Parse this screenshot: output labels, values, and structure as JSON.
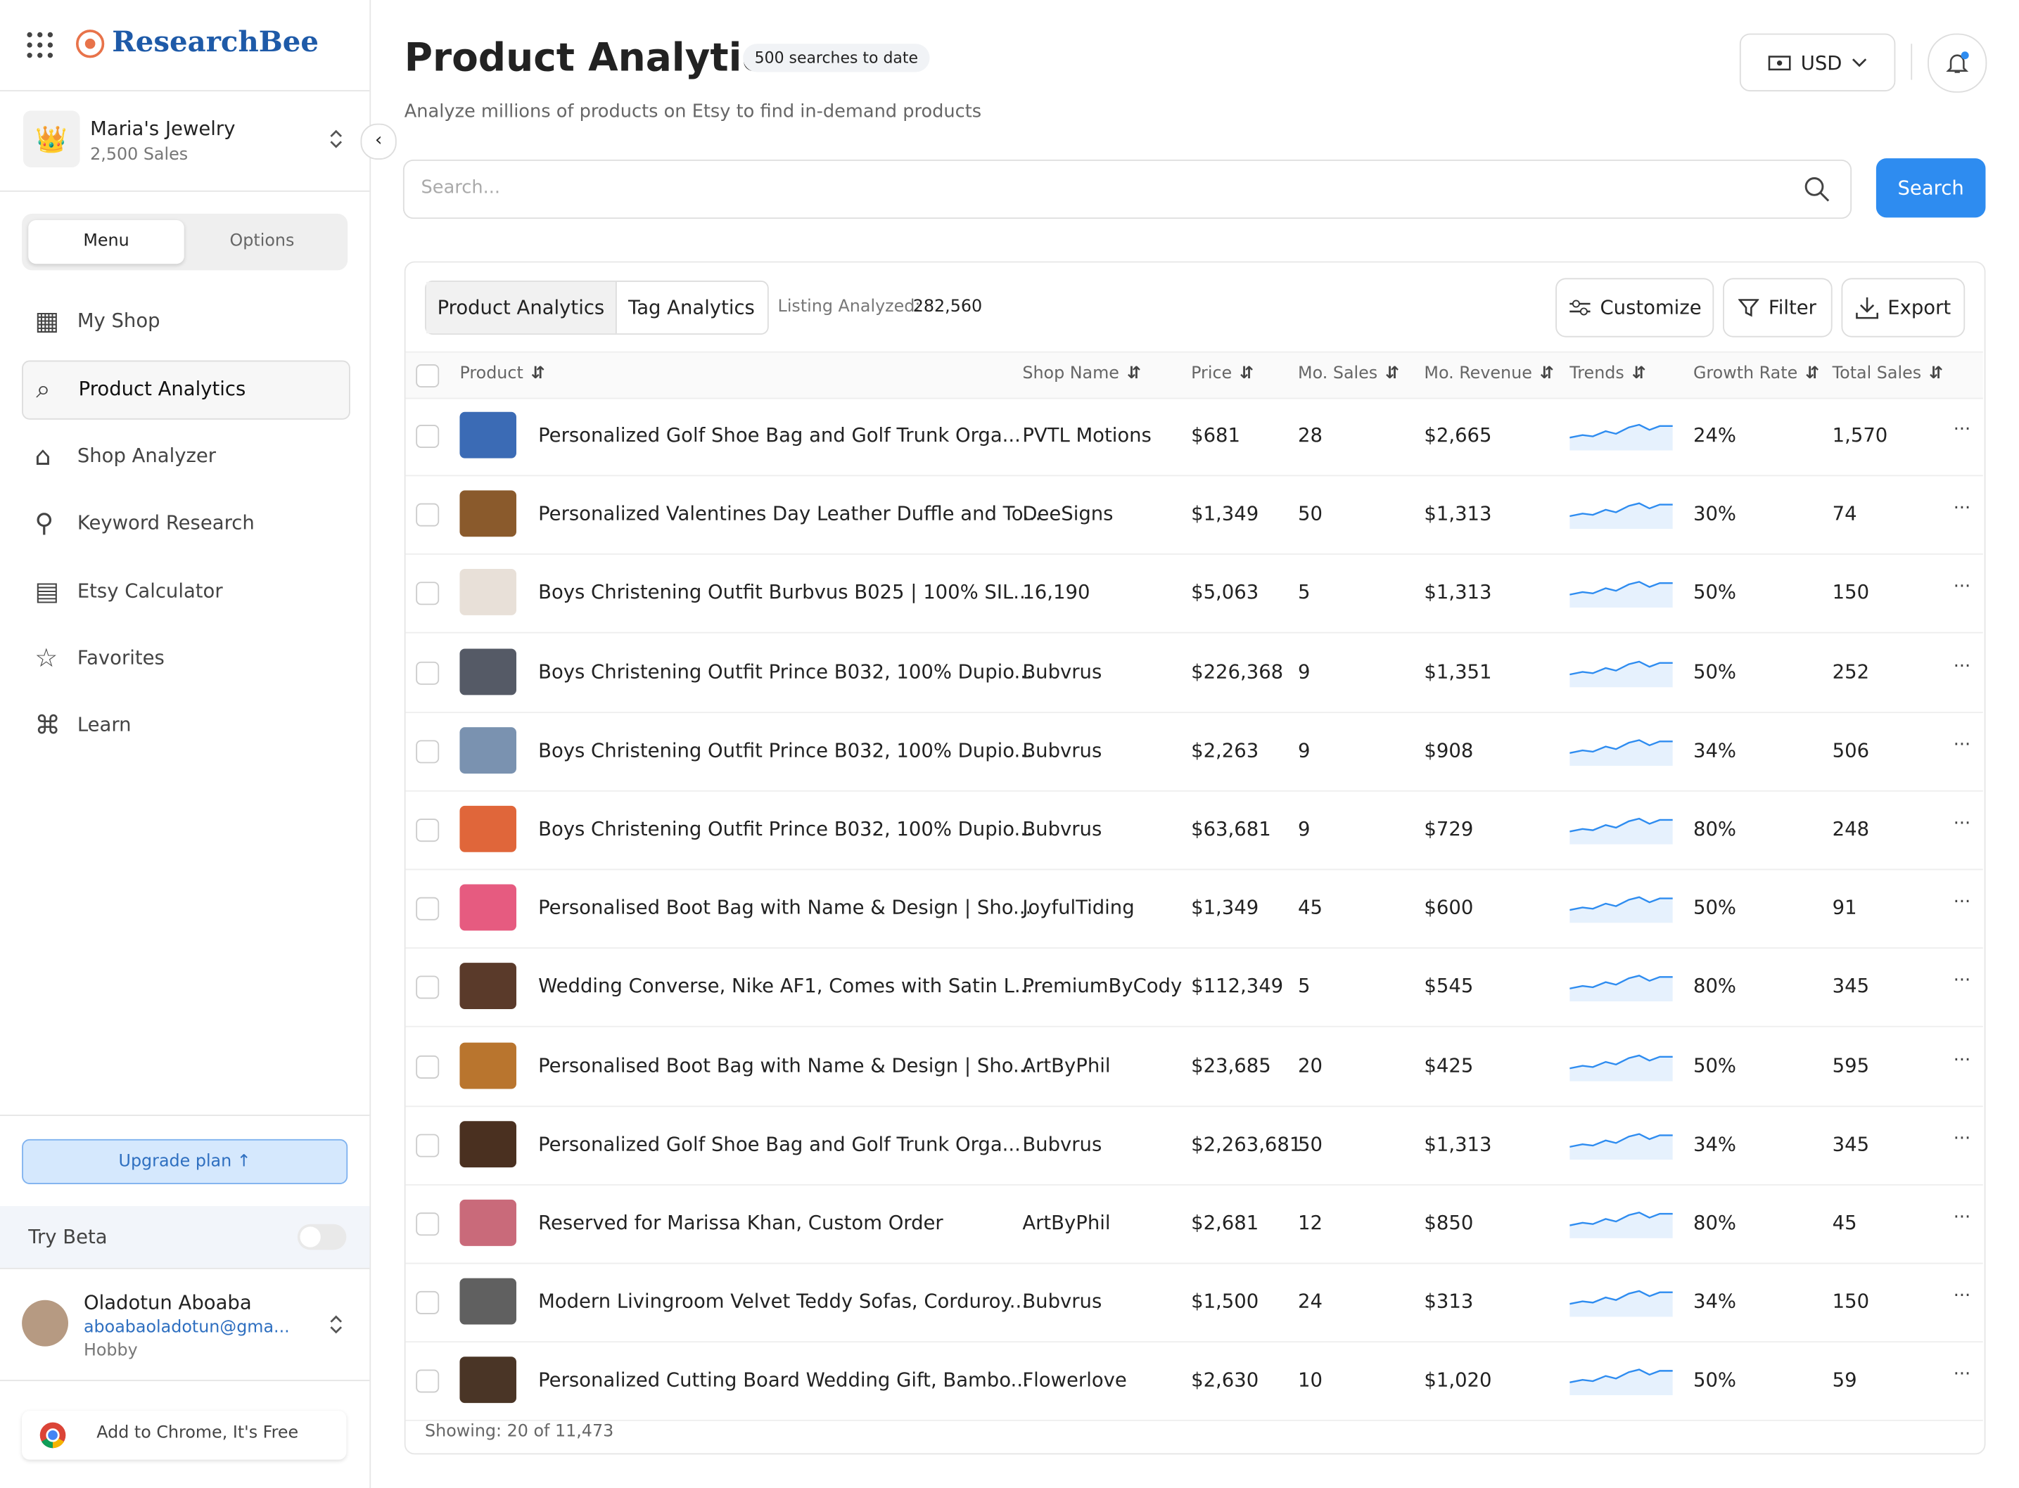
{
  "brand": "ResearchBee",
  "shop": {
    "name": "Maria's Jewelry",
    "sales": "2,500 Sales"
  },
  "sidebar_tabs": [
    "Menu",
    "Options"
  ],
  "nav": [
    "My Shop",
    "Product Analytics",
    "Shop Analyzer",
    "Keyword Research",
    "Etsy Calculator",
    "Favorites",
    "Learn"
  ],
  "upgrade": "Upgrade plan",
  "beta": "Try Beta",
  "user": {
    "name": "Oladotun Aboaba",
    "email": "aboabaoladotun@gma...",
    "plan": "Hobby"
  },
  "chrome": "Add to Chrome, It's Free",
  "header": {
    "title": "Product Analytics",
    "badge": "500 searches to date",
    "subtitle": "Analyze millions of products on Etsy to find in-demand products",
    "currency": "USD",
    "search_placeholder": "Search...",
    "search_button": "Search"
  },
  "toolbar": {
    "tabs": [
      "Product Analytics",
      "Tag Analytics"
    ],
    "listing_label": "Listing Analyzed:",
    "listing_value": "282,560",
    "buttons": [
      "Customize",
      "Filter",
      "Export"
    ]
  },
  "table": {
    "columns": [
      "Product",
      "Shop Name",
      "Price",
      "Mo. Sales",
      "Mo. Revenue",
      "Trends",
      "Growth Rate",
      "Total Sales"
    ],
    "rows": [
      [
        "Personalized Golf Shoe Bag and Golf Trunk Orga...",
        "PVTL Motions",
        "$681",
        "28",
        "$2,665",
        "24%",
        "1,570"
      ],
      [
        "Personalized Valentines Day Leather Duffle and To...",
        "DeeSigns",
        "$1,349",
        "50",
        "$1,313",
        "30%",
        "74"
      ],
      [
        "Boys Christening Outfit Burbvus B025 | 100% SIL...",
        "16,190",
        "$5,063",
        "5",
        "$1,313",
        "50%",
        "150"
      ],
      [
        "Boys Christening Outfit Prince B032, 100% Dupio...",
        "Bubvrus",
        "$226,368",
        "9",
        "$1,351",
        "50%",
        "252"
      ],
      [
        "Boys Christening Outfit Prince B032, 100% Dupio...",
        "Bubvrus",
        "$2,263",
        "9",
        "$908",
        "34%",
        "506"
      ],
      [
        "Boys Christening Outfit Prince B032, 100% Dupio...",
        "Bubvrus",
        "$63,681",
        "9",
        "$729",
        "80%",
        "248"
      ],
      [
        "Personalised Boot Bag with Name & Design | Sho...",
        "JoyfulTiding",
        "$1,349",
        "45",
        "$600",
        "50%",
        "91"
      ],
      [
        "Wedding Converse, Nike AF1, Comes with Satin L...",
        "PremiumByCody",
        "$112,349",
        "5",
        "$545",
        "80%",
        "345"
      ],
      [
        "Personalised Boot Bag with Name & Design | Sho...",
        "ArtByPhil",
        "$23,685",
        "20",
        "$425",
        "50%",
        "595"
      ],
      [
        "Personalized Golf Shoe Bag and Golf Trunk Orga...",
        "Bubvrus",
        "$2,263,681",
        "50",
        "$1,313",
        "34%",
        "345"
      ],
      [
        "Reserved for Marissa Khan, Custom Order",
        "ArtByPhil",
        "$2,681",
        "12",
        "$850",
        "80%",
        "45"
      ],
      [
        "Modern Livingroom Velvet Teddy Sofas, Corduroy...",
        "Bubvrus",
        "$1,500",
        "24",
        "$313",
        "34%",
        "150"
      ],
      [
        "Personalized Cutting Board Wedding Gift, Bambo...",
        "Flowerlove",
        "$2,630",
        "10",
        "$1,020",
        "50%",
        "59"
      ]
    ]
  },
  "footer": "Showing: 20 of 11,473"
}
